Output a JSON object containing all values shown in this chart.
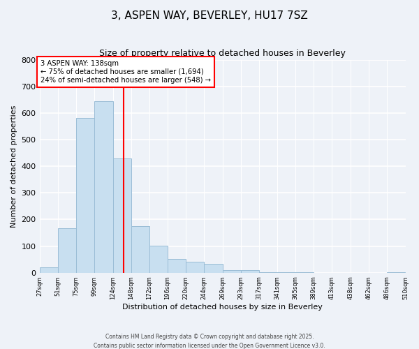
{
  "title": "3, ASPEN WAY, BEVERLEY, HU17 7SZ",
  "subtitle": "Size of property relative to detached houses in Beverley",
  "xlabel": "Distribution of detached houses by size in Beverley",
  "ylabel": "Number of detached properties",
  "bins": [
    27,
    51,
    75,
    99,
    124,
    148,
    172,
    196,
    220,
    244,
    269,
    293,
    317,
    341,
    365,
    389,
    413,
    438,
    462,
    486,
    510
  ],
  "counts": [
    20,
    168,
    582,
    645,
    430,
    175,
    101,
    51,
    40,
    33,
    10,
    11,
    3,
    1,
    1,
    0,
    0,
    0,
    0,
    2
  ],
  "bar_color": "#c8dff0",
  "bar_edge_color": "#9bbdd6",
  "vline_x": 138,
  "vline_color": "red",
  "annotation_title": "3 ASPEN WAY: 138sqm",
  "annotation_line1": "← 75% of detached houses are smaller (1,694)",
  "annotation_line2": "24% of semi-detached houses are larger (548) →",
  "annotation_box_color": "white",
  "annotation_box_edge": "red",
  "ylim": [
    0,
    800
  ],
  "yticks": [
    0,
    100,
    200,
    300,
    400,
    500,
    600,
    700,
    800
  ],
  "tick_labels": [
    "27sqm",
    "51sqm",
    "75sqm",
    "99sqm",
    "124sqm",
    "148sqm",
    "172sqm",
    "196sqm",
    "220sqm",
    "244sqm",
    "269sqm",
    "293sqm",
    "317sqm",
    "341sqm",
    "365sqm",
    "389sqm",
    "413sqm",
    "438sqm",
    "462sqm",
    "486sqm",
    "510sqm"
  ],
  "footer1": "Contains HM Land Registry data © Crown copyright and database right 2025.",
  "footer2": "Contains public sector information licensed under the Open Government Licence v3.0.",
  "background_color": "#eef2f8"
}
